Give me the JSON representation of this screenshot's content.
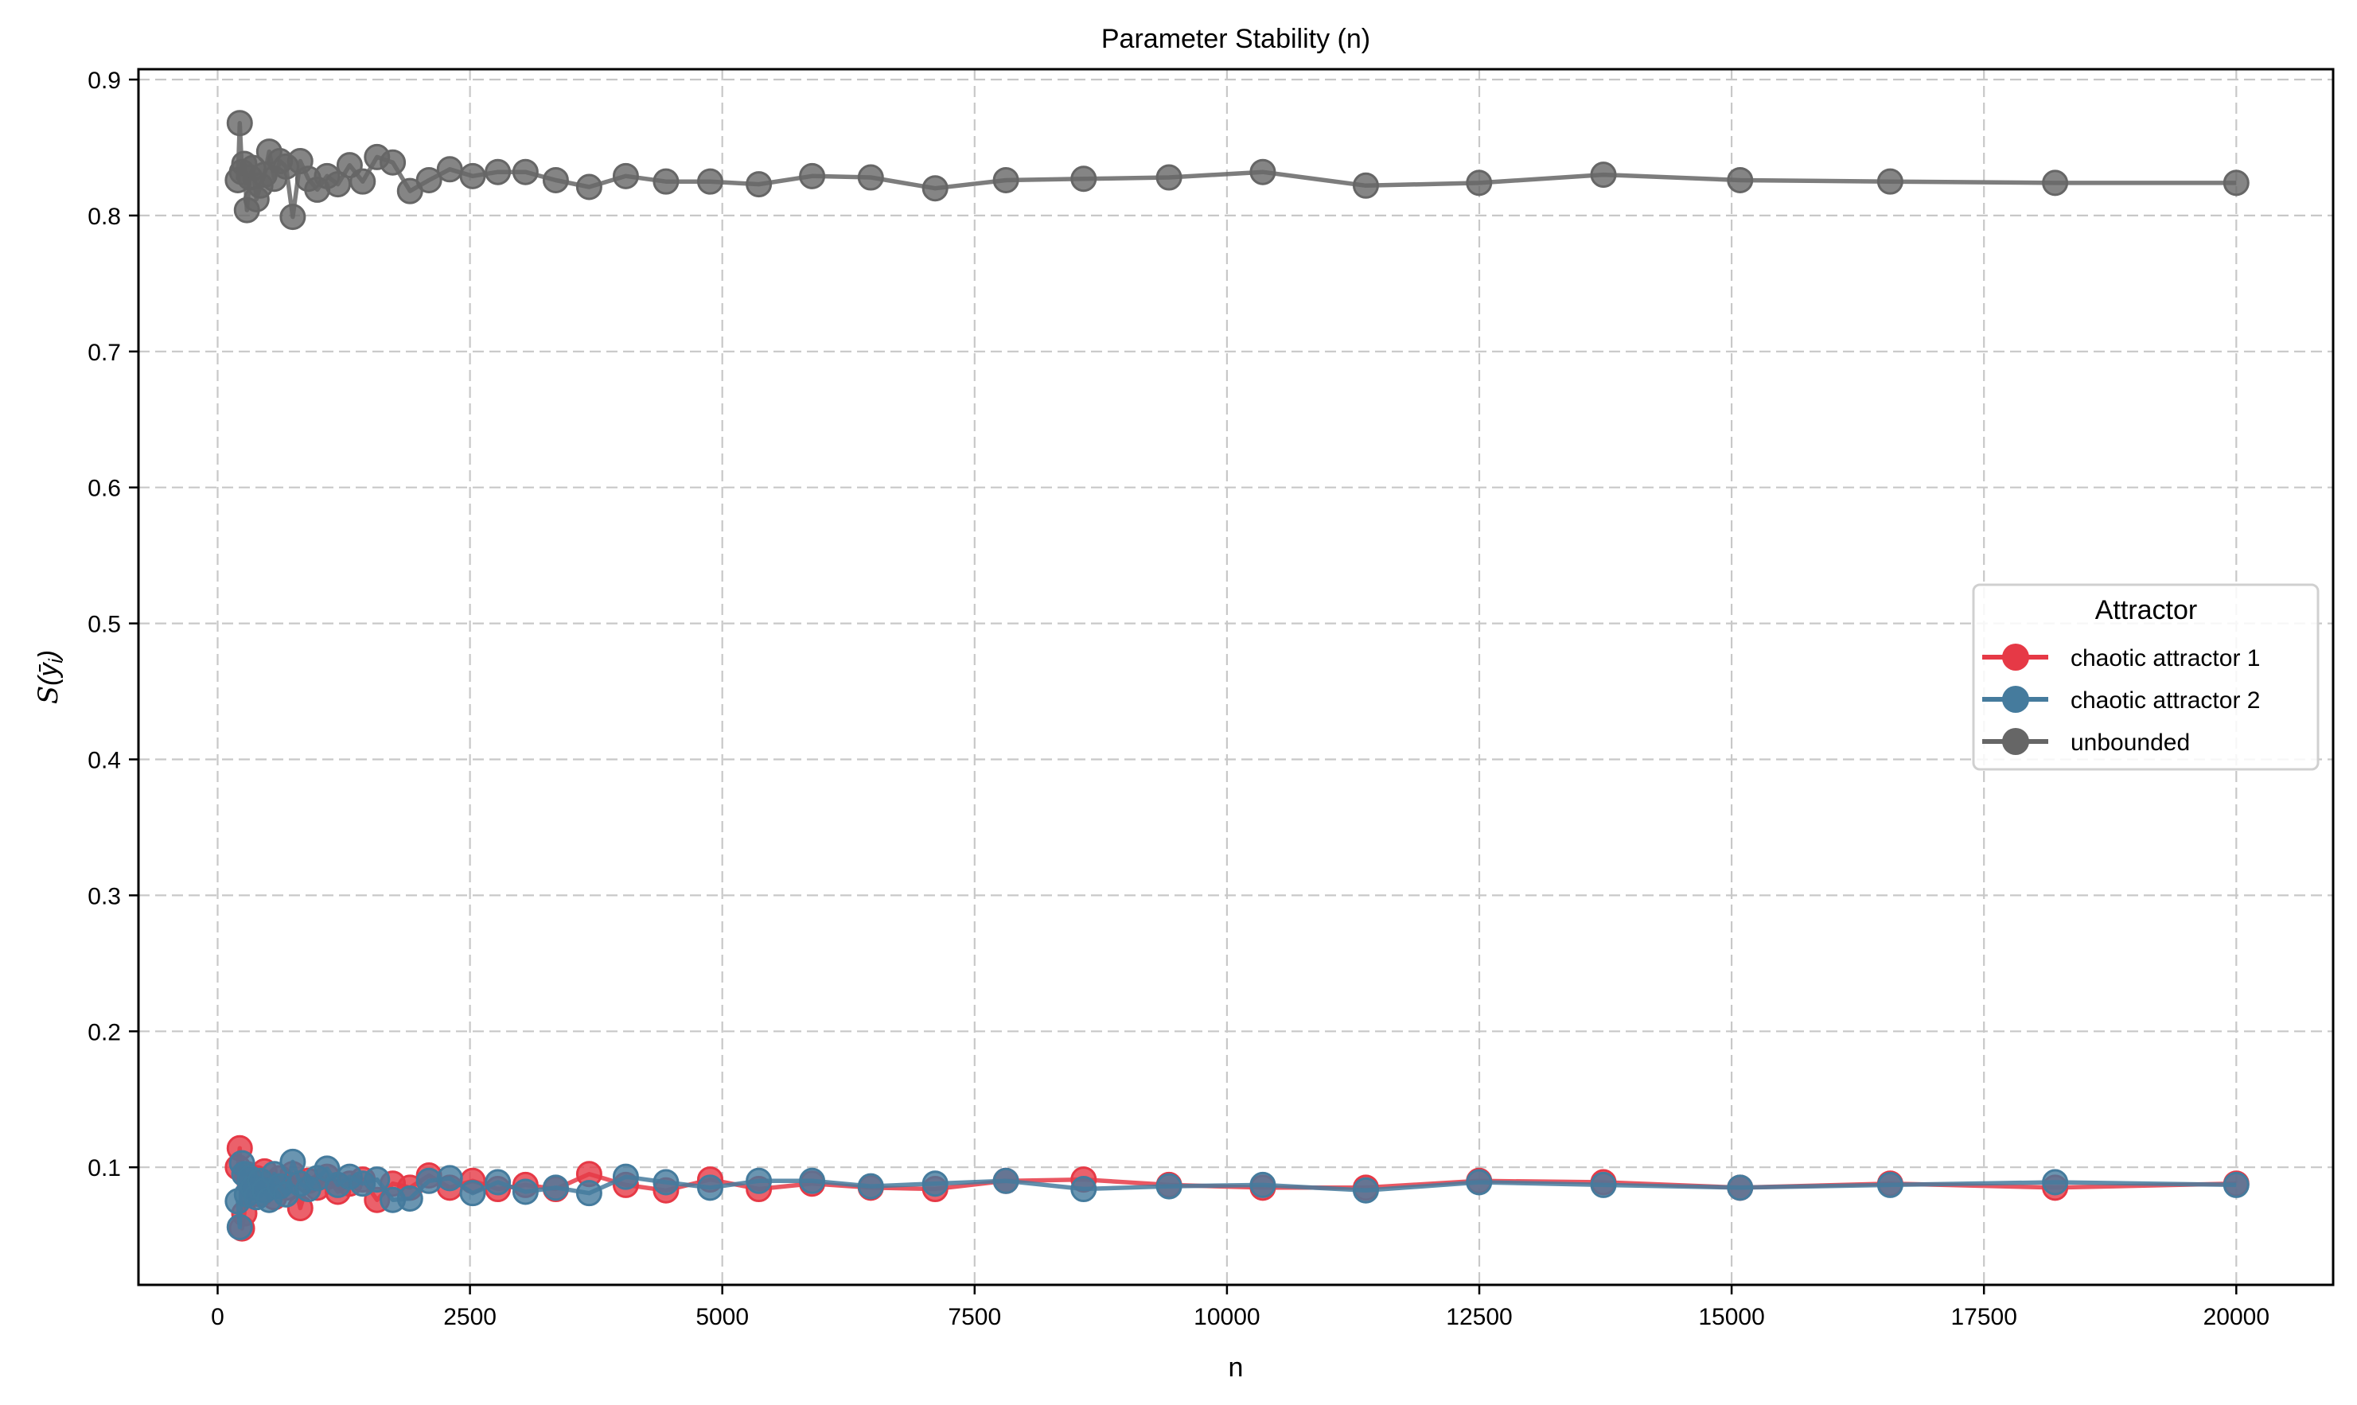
{
  "chart_data": {
    "type": "line",
    "title": "Parameter Stability (n)",
    "xlabel": "n",
    "ylabel": "S(ȳ_i)",
    "xlim": [
      -800,
      20800
    ],
    "ylim": [
      0.012,
      0.91
    ],
    "xticks": [
      0,
      2500,
      5000,
      7500,
      10000,
      12500,
      15000,
      17500,
      20000
    ],
    "xtick_labels": [
      "0",
      "2500",
      "5000",
      "7500",
      "10000",
      "12500",
      "15000",
      "17500",
      "20000"
    ],
    "yticks": [
      0.1,
      0.2,
      0.3,
      0.4,
      0.5,
      0.6,
      0.7,
      0.8,
      0.9
    ],
    "ytick_labels": [
      "0.1",
      "0.2",
      "0.3",
      "0.4",
      "0.5",
      "0.6",
      "0.7",
      "0.8",
      "0.9"
    ],
    "grid": true,
    "legend": {
      "title": "Attractor",
      "position": "center right"
    },
    "x": [
      200,
      219,
      241,
      264,
      290,
      319,
      351,
      385,
      423,
      465,
      511,
      561,
      617,
      678,
      744,
      818,
      898,
      987,
      1084,
      1191,
      1308,
      1437,
      1579,
      1735,
      1906,
      2094,
      2300,
      2527,
      2776,
      3050,
      3350,
      3681,
      4044,
      4442,
      4880,
      5362,
      5890,
      6471,
      7109,
      7810,
      8580,
      9426,
      10355,
      11376,
      12498,
      13730,
      15084,
      16571,
      18205,
      20000
    ],
    "series": [
      {
        "name": "chaotic attractor 1",
        "color": "#E63946",
        "values": [
          0.1,
          0.114,
          0.055,
          0.066,
          0.095,
          0.088,
          0.085,
          0.092,
          0.08,
          0.097,
          0.088,
          0.078,
          0.092,
          0.085,
          0.095,
          0.07,
          0.09,
          0.085,
          0.093,
          0.082,
          0.088,
          0.091,
          0.076,
          0.088,
          0.085,
          0.094,
          0.085,
          0.09,
          0.084,
          0.087,
          0.084,
          0.095,
          0.087,
          0.083,
          0.091,
          0.084,
          0.088,
          0.085,
          0.084,
          0.09,
          0.091,
          0.087,
          0.085,
          0.085,
          0.09,
          0.089,
          0.085,
          0.088,
          0.085,
          0.088
        ]
      },
      {
        "name": "chaotic attractor 2",
        "color": "#457B9D",
        "values": [
          0.075,
          0.056,
          0.103,
          0.095,
          0.08,
          0.092,
          0.085,
          0.078,
          0.09,
          0.083,
          0.076,
          0.095,
          0.086,
          0.08,
          0.104,
          0.088,
          0.084,
          0.092,
          0.099,
          0.087,
          0.093,
          0.088,
          0.091,
          0.076,
          0.077,
          0.09,
          0.092,
          0.081,
          0.089,
          0.082,
          0.085,
          0.081,
          0.093,
          0.089,
          0.085,
          0.09,
          0.09,
          0.086,
          0.088,
          0.09,
          0.084,
          0.086,
          0.087,
          0.083,
          0.089,
          0.087,
          0.085,
          0.087,
          0.089,
          0.087
        ]
      },
      {
        "name": "unbounded",
        "color": "#666666",
        "values": [
          0.826,
          0.868,
          0.832,
          0.838,
          0.804,
          0.828,
          0.835,
          0.812,
          0.822,
          0.83,
          0.847,
          0.827,
          0.84,
          0.836,
          0.799,
          0.84,
          0.827,
          0.819,
          0.829,
          0.823,
          0.837,
          0.825,
          0.843,
          0.839,
          0.818,
          0.826,
          0.834,
          0.829,
          0.832,
          0.832,
          0.826,
          0.821,
          0.829,
          0.825,
          0.825,
          0.823,
          0.829,
          0.828,
          0.82,
          0.826,
          0.827,
          0.828,
          0.832,
          0.822,
          0.824,
          0.83,
          0.826,
          0.825,
          0.824,
          0.824
        ]
      }
    ]
  }
}
